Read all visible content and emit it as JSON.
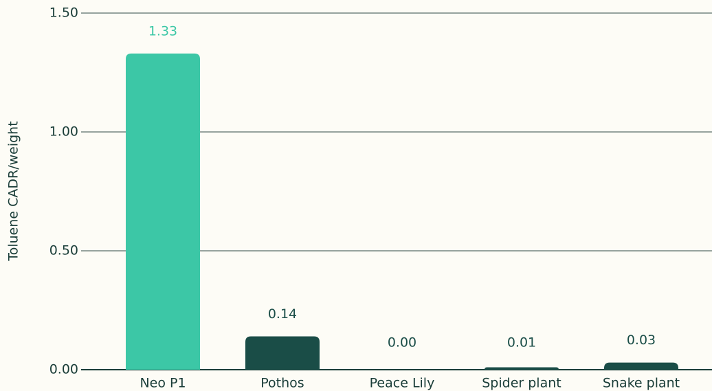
{
  "chart_data": {
    "type": "bar",
    "y_label": "Toluene CADR/weight",
    "categories": [
      "Neo P1",
      "Pothos",
      "Peace Lily",
      "Spider plant",
      "Snake plant"
    ],
    "values": [
      1.33,
      0.14,
      0,
      0.01,
      0.03
    ],
    "value_labels": [
      "1.33",
      "0.14",
      "0.00",
      "0.01",
      "0.03"
    ],
    "colors": [
      "#3cc7a6",
      "#1a4d47",
      "#1a4d47",
      "#1a4d47",
      "#1a4d47"
    ],
    "ylim": [
      0,
      1.5
    ],
    "yticks": [
      {
        "value": 0,
        "label": "0.00"
      },
      {
        "value": 0.5,
        "label": "0.50"
      },
      {
        "value": 1,
        "label": "1.00"
      },
      {
        "value": 1.5,
        "label": "1.50"
      }
    ],
    "grid": true
  }
}
